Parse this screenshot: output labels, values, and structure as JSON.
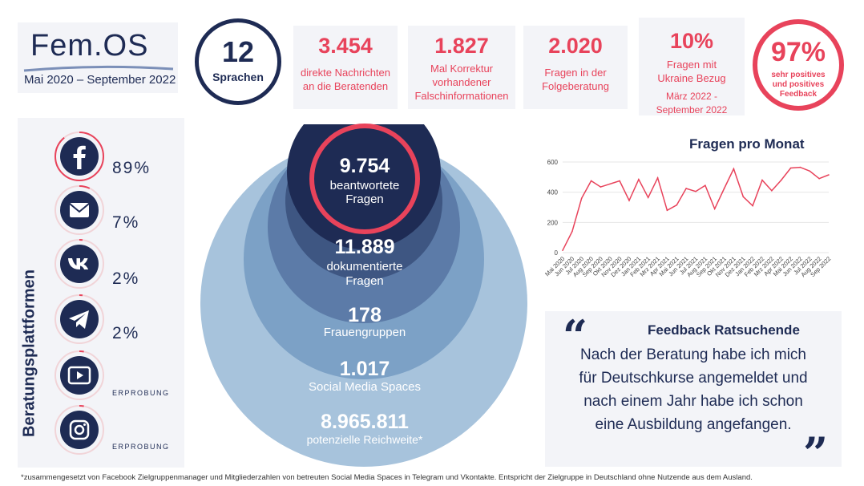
{
  "header": {
    "logo_text": "Fem.OS",
    "period": "Mai 2020 – September 2022",
    "languages": {
      "value": "12",
      "label": "Sprachen"
    }
  },
  "stats": [
    {
      "value": "3.454",
      "label": "direkte Nachrichten an die Beratenden"
    },
    {
      "value": "1.827",
      "label": "Mal Korrektur vorhandener Falschinformationen"
    },
    {
      "value": "2.020",
      "label": "Fragen in der Folgeberatung"
    },
    {
      "value": "10%",
      "label": "Fragen mit Ukraine Bezug",
      "sublabel": "März 2022 - September 2022"
    }
  ],
  "feedback_badge": {
    "value": "97%",
    "label": "sehr positives und positives Feedback"
  },
  "platforms": {
    "title": "Beratungsplattformen",
    "items": [
      {
        "icon": "facebook-icon",
        "value": "89%",
        "share": 0.89
      },
      {
        "icon": "mail-icon",
        "value": "7%",
        "share": 0.07
      },
      {
        "icon": "vk-icon",
        "value": "2%",
        "share": 0.02
      },
      {
        "icon": "telegram-icon",
        "value": "2%",
        "share": 0.02
      },
      {
        "icon": "youtube-icon",
        "value": "ERPROBUNG",
        "share": 0.03
      },
      {
        "icon": "instagram-icon",
        "value": "ERPROBUNG",
        "share": 0.03
      }
    ]
  },
  "circles": [
    {
      "value": "9.754",
      "label": "beantwortete Fragen"
    },
    {
      "value": "11.889",
      "label": "dokumentierte Fragen"
    },
    {
      "value": "178",
      "label": "Frauengruppen"
    },
    {
      "value": "1.017",
      "label": "Social Media Spaces"
    },
    {
      "value": "8.965.811",
      "label": "potenzielle Reichweite*"
    }
  ],
  "chart_data": {
    "type": "line",
    "title": "Fragen pro Monat",
    "ylim": [
      0,
      600
    ],
    "yticks": [
      0,
      200,
      400,
      600
    ],
    "grid": true,
    "color": "#e8435b",
    "categories": [
      "Mai 2020",
      "Jun 2020",
      "Jul 2020",
      "Aug 2020",
      "Sep 2020",
      "Okt 2020",
      "Nov 2020",
      "Dez 2020",
      "Jan 2021",
      "Feb 2021",
      "Mrz 2021",
      "Apr 2021",
      "Mai 2021",
      "Jun 2021",
      "Jul 2021",
      "Aug 2021",
      "Sep 2021",
      "Okt 2021",
      "Nov 2021",
      "Dez 2021",
      "Jan 2022",
      "Feb 2022",
      "Mrz 2022",
      "Apr 2022",
      "Mai 2022",
      "Jun 2022",
      "Jul 2022",
      "Aug 2022",
      "Sep 2022"
    ],
    "labels": [
      "Mai 2020",
      "Jun 2020",
      "Jul 2020",
      "Aug 2020",
      "Sep 2020",
      "Okt 2020",
      "Nov 2020",
      "Dez 2020",
      "Jan 2021",
      "Feb 2021",
      "Mrz 2021",
      "Apr 2021",
      "Mai 2021",
      "Jun 2021",
      "Jul 2021",
      "Aug 2021",
      "Sep 2021",
      "Okt 2021",
      "Nov 2021",
      "Dez 2021",
      "Jan 2022",
      "Feb 2022",
      "Mrz 2022",
      "Apr 2022",
      "Mai 2022",
      "Jun 2022",
      "Jul 2022",
      "Aug 2022",
      "Sep 2022"
    ],
    "values": [
      15,
      140,
      360,
      475,
      435,
      455,
      475,
      345,
      485,
      365,
      495,
      280,
      315,
      425,
      405,
      445,
      290,
      425,
      555,
      370,
      310,
      480,
      410,
      480,
      560,
      565,
      540,
      490,
      515
    ]
  },
  "quote": {
    "title": "Feedback Ratsuchende",
    "lines": [
      "Nach der Beratung habe ich mich",
      "für Deutschkurse angemeldet und",
      "nach einem Jahr habe ich schon",
      "eine Ausbildung angefangen."
    ]
  },
  "footnote": "*zusammengesetzt von Facebook Zielgruppenmanager und Mitgliederzahlen von betreuten Social Media Spaces in Telegram und Vkontakte. Entspricht der Zielgruppe in Deutschland ohne Nutzende aus dem Ausland."
}
